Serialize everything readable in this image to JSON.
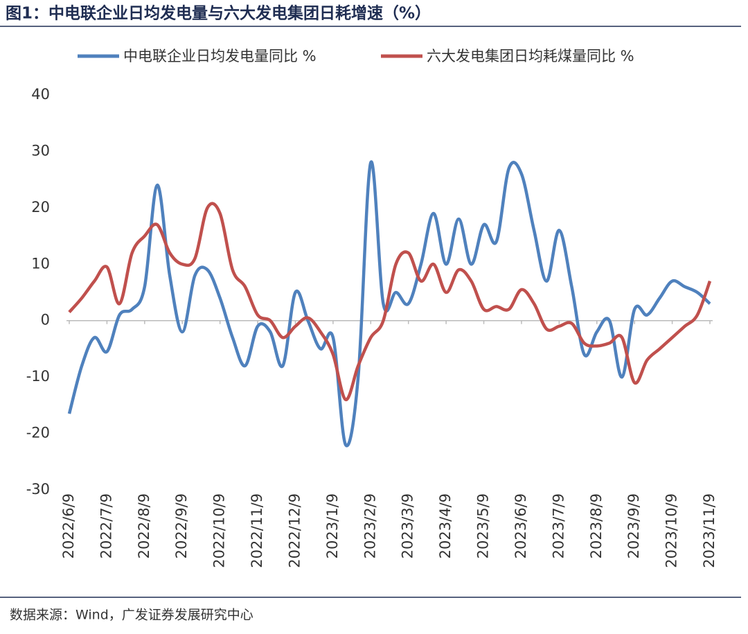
{
  "chart_data": {
    "type": "line",
    "title": "图1：中电联企业日均发电量与六大发电集团日耗增速（%）",
    "source": "数据来源：Wind，广发证券发展研究中心",
    "categories": [
      "2022/6/9",
      null,
      null,
      "2022/7/9",
      null,
      null,
      "2022/8/9",
      null,
      null,
      "2022/9/9",
      null,
      null,
      "2022/10/9",
      null,
      null,
      "2022/11/9",
      null,
      null,
      "2022/12/9",
      null,
      null,
      "2023/1/9",
      null,
      null,
      "2023/2/9",
      null,
      null,
      "2023/3/9",
      null,
      null,
      "2023/4/9",
      null,
      null,
      "2023/5/9",
      null,
      null,
      "2023/6/9",
      null,
      null,
      "2023/7/9",
      null,
      null,
      "2023/8/9",
      null,
      null,
      "2023/9/9",
      null,
      null,
      "2023/10/9",
      null,
      null,
      "2023/11/9"
    ],
    "series": [
      {
        "name": "中电联企业日均发电量同比 %",
        "color": "#4f81bd",
        "values": [
          -16.5,
          -8,
          -3,
          -5.5,
          1,
          2,
          6,
          24,
          8,
          -2,
          8,
          9,
          4,
          -3,
          -8,
          -1,
          -2,
          -8,
          5,
          0,
          -5,
          -3,
          -22,
          -10,
          28,
          3,
          5,
          3,
          10,
          19,
          10,
          18,
          10,
          17,
          14,
          27,
          26,
          16,
          7,
          16,
          6,
          -6,
          -2,
          0,
          -10,
          2,
          1,
          4,
          7,
          6,
          5,
          3
        ]
      },
      {
        "name": "六大发电集团日均耗煤量同比 %",
        "color": "#c0504d",
        "values": [
          1.5,
          4,
          7,
          9.5,
          3,
          12,
          15,
          17,
          12,
          10,
          11,
          20,
          19,
          9,
          6,
          1,
          0,
          -3,
          -1,
          0.5,
          -2,
          -6,
          -14,
          -8,
          -3,
          0,
          10,
          12,
          7,
          10,
          5,
          9,
          7,
          2,
          2.5,
          2,
          5.5,
          3,
          -1.5,
          -1,
          -0.5,
          -4,
          -4.5,
          -4,
          -3,
          -11,
          -7,
          -5,
          -3,
          -1,
          1,
          7
        ]
      }
    ],
    "ylim": [
      -30,
      40
    ],
    "yticks": [
      -30,
      -20,
      -10,
      0,
      10,
      20,
      30,
      40
    ],
    "legend": "top"
  }
}
